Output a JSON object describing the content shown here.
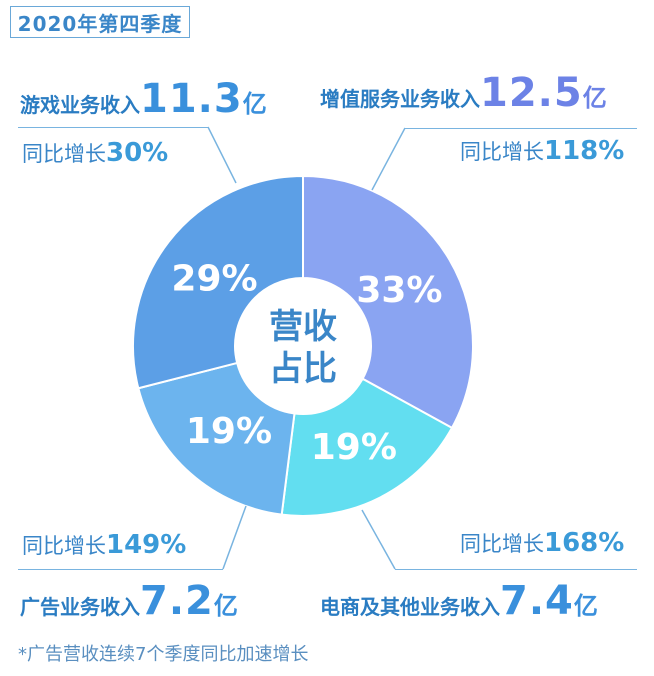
{
  "period": "2020年第四季度",
  "center_label": [
    "营收",
    "占比"
  ],
  "growth_prefix": "同比增长",
  "footnote": "*广告营收连续7个季度同比加速增长",
  "chart_data": {
    "type": "pie",
    "donut": true,
    "title": "营收占比",
    "slices": [
      {
        "name": "增值服务业务收入",
        "revenue": "12.5",
        "unit": "亿",
        "share": 33,
        "share_label": "33%",
        "growth": "118%",
        "color": "#8aa4f2"
      },
      {
        "name": "电商及其他业务收入",
        "revenue": "7.4",
        "unit": "亿",
        "share": 19,
        "share_label": "19%",
        "growth": "168%",
        "color": "#62def0"
      },
      {
        "name": "广告业务收入",
        "revenue": "7.2",
        "unit": "亿",
        "share": 19,
        "share_label": "19%",
        "growth": "149%",
        "color": "#6cb4ee"
      },
      {
        "name": "游戏业务收入",
        "revenue": "11.3",
        "unit": "亿",
        "share": 29,
        "share_label": "29%",
        "growth": "30%",
        "color": "#5c9fe6"
      }
    ]
  }
}
